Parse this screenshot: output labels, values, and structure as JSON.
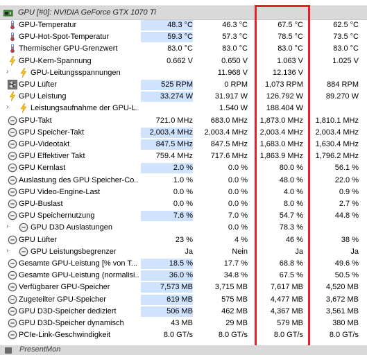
{
  "header": {
    "title": "GPU [#0]: NVIDIA GeForce GTX 1070 Ti"
  },
  "rows": [
    {
      "label": "GPU-Temperatur",
      "icon": "thermometer-icon",
      "c1": "48.3 °C",
      "c2": "46.3 °C",
      "c3": "67.5 °C",
      "c4": "62.5 °C",
      "hl": true,
      "expand": false
    },
    {
      "label": "GPU-Hot-Spot-Temperatur",
      "icon": "thermometer-icon",
      "c1": "59.3 °C",
      "c2": "57.3 °C",
      "c3": "78.5 °C",
      "c4": "73.5 °C",
      "hl": true,
      "expand": false
    },
    {
      "label": "Thermischer GPU-Grenzwert",
      "icon": "thermometer-icon",
      "c1": "83.0 °C",
      "c2": "83.0 °C",
      "c3": "83.0 °C",
      "c4": "83.0 °C",
      "hl": false,
      "expand": false
    },
    {
      "label": "GPU-Kern-Spannung",
      "icon": "lightning-icon",
      "c1": "0.662 V",
      "c2": "0.650 V",
      "c3": "1.063 V",
      "c4": "1.025 V",
      "hl": false,
      "expand": false
    },
    {
      "label": "GPU-Leitungsspannungen",
      "icon": "lightning-icon",
      "c1": "",
      "c2": "11.968 V",
      "c3": "12.136 V",
      "c4": "",
      "hl": false,
      "expand": true
    },
    {
      "label": "GPU Lüfter",
      "icon": "fan-icon",
      "c1": "525 RPM",
      "c2": "0 RPM",
      "c3": "1,073 RPM",
      "c4": "884 RPM",
      "hl": true,
      "expand": false
    },
    {
      "label": "GPU Leistung",
      "icon": "lightning-icon",
      "c1": "33.274 W",
      "c2": "31.917 W",
      "c3": "126.792 W",
      "c4": "89.270 W",
      "hl": true,
      "expand": false
    },
    {
      "label": "Leistungsaufnahme der GPU-L...",
      "icon": "lightning-icon",
      "c1": "",
      "c2": "1.540 W",
      "c3": "188.404 W",
      "c4": "",
      "hl": false,
      "expand": true
    },
    {
      "label": "GPU-Takt",
      "icon": "clock-icon",
      "c1": "721.0 MHz",
      "c2": "683.0 MHz",
      "c3": "1,873.0 MHz",
      "c4": "1,810.1 MHz",
      "hl": false,
      "expand": false
    },
    {
      "label": "GPU Speicher-Takt",
      "icon": "clock-icon",
      "c1": "2,003.4 MHz",
      "c2": "2,003.4 MHz",
      "c3": "2,003.4 MHz",
      "c4": "2,003.4 MHz",
      "hl": true,
      "expand": false
    },
    {
      "label": "GPU-Videotakt",
      "icon": "clock-icon",
      "c1": "847.5 MHz",
      "c2": "847.5 MHz",
      "c3": "1,683.0 MHz",
      "c4": "1,630.4 MHz",
      "hl": true,
      "expand": false
    },
    {
      "label": "GPU Effektiver Takt",
      "icon": "clock-icon",
      "c1": "759.4 MHz",
      "c2": "717.6 MHz",
      "c3": "1,863.9 MHz",
      "c4": "1,796.2 MHz",
      "hl": false,
      "expand": false
    },
    {
      "label": "GPU Kernlast",
      "icon": "clock-icon",
      "c1": "2.0 %",
      "c2": "0.0 %",
      "c3": "80.0 %",
      "c4": "56.1 %",
      "hl": true,
      "expand": false
    },
    {
      "label": "Auslastung des GPU Speicher-Co...",
      "icon": "clock-icon",
      "c1": "1.0 %",
      "c2": "0.0 %",
      "c3": "48.0 %",
      "c4": "22.0 %",
      "hl": false,
      "expand": false
    },
    {
      "label": "GPU Video-Engine-Last",
      "icon": "clock-icon",
      "c1": "0.0 %",
      "c2": "0.0 %",
      "c3": "4.0 %",
      "c4": "0.9 %",
      "hl": false,
      "expand": false
    },
    {
      "label": "GPU-Buslast",
      "icon": "clock-icon",
      "c1": "0.0 %",
      "c2": "0.0 %",
      "c3": "8.0 %",
      "c4": "2.7 %",
      "hl": false,
      "expand": false
    },
    {
      "label": "GPU Speichernutzung",
      "icon": "clock-icon",
      "c1": "7.6 %",
      "c2": "7.0 %",
      "c3": "54.7 %",
      "c4": "44.8 %",
      "hl": true,
      "expand": false
    },
    {
      "label": "GPU D3D Auslastungen",
      "icon": "clock-icon",
      "c1": "",
      "c2": "0.0 %",
      "c3": "78.3 %",
      "c4": "",
      "hl": false,
      "expand": true
    },
    {
      "label": "GPU Lüfter",
      "icon": "clock-icon",
      "c1": "23 %",
      "c2": "4 %",
      "c3": "46 %",
      "c4": "38 %",
      "hl": false,
      "expand": false
    },
    {
      "label": "GPU Leistungsbegrenzer",
      "icon": "clock-icon",
      "c1": "Ja",
      "c2": "Nein",
      "c3": "Ja",
      "c4": "Ja",
      "hl": false,
      "expand": true
    },
    {
      "label": "Gesamte GPU-Leistung [% von T...",
      "icon": "clock-icon",
      "c1": "18.5 %",
      "c2": "17.7 %",
      "c3": "68.8 %",
      "c4": "49.6 %",
      "hl": true,
      "expand": false
    },
    {
      "label": "Gesamte GPU-Leistung (normalisi...",
      "icon": "clock-icon",
      "c1": "36.0 %",
      "c2": "34.8 %",
      "c3": "67.5 %",
      "c4": "50.5 %",
      "hl": true,
      "expand": false
    },
    {
      "label": "Verfügbarer GPU-Speicher",
      "icon": "clock-icon",
      "c1": "7,573 MB",
      "c2": "3,715 MB",
      "c3": "7,617 MB",
      "c4": "4,520 MB",
      "hl": true,
      "expand": false
    },
    {
      "label": "Zugeteilter GPU-Speicher",
      "icon": "clock-icon",
      "c1": "619 MB",
      "c2": "575 MB",
      "c3": "4,477 MB",
      "c4": "3,672 MB",
      "hl": true,
      "expand": false
    },
    {
      "label": "GPU D3D-Speicher dediziert",
      "icon": "clock-icon",
      "c1": "506 MB",
      "c2": "462 MB",
      "c3": "4,367 MB",
      "c4": "3,561 MB",
      "hl": true,
      "expand": false
    },
    {
      "label": "GPU D3D-Speicher dynamisch",
      "icon": "clock-icon",
      "c1": "43 MB",
      "c2": "29 MB",
      "c3": "579 MB",
      "c4": "380 MB",
      "hl": false,
      "expand": false
    },
    {
      "label": "PCIe-Link-Geschwindigkeit",
      "icon": "clock-icon",
      "c1": "8.0 GT/s",
      "c2": "8.0 GT/s",
      "c3": "8.0 GT/s",
      "c4": "8.0 GT/s",
      "hl": false,
      "expand": false
    }
  ],
  "footer": {
    "label": "PresentMon"
  },
  "colors": {
    "highlight": "#cfe3ff",
    "redbox": "#e5202a",
    "header_bg": "#d9d9d9"
  }
}
